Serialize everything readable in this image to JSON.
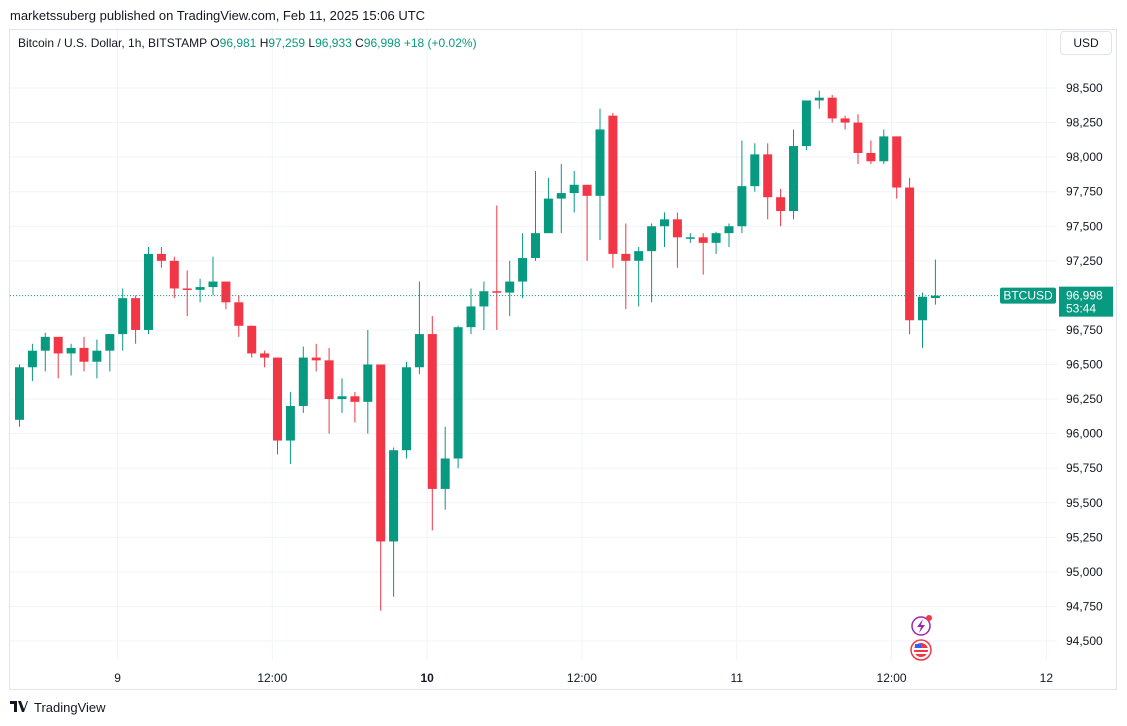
{
  "header": {
    "publisher": "marketssuberg published on TradingView.com, Feb 11, 2025 15:06 UTC"
  },
  "legend": {
    "symbol": "Bitcoin / U.S. Dollar, 1h, BITSTAMP",
    "o_label": "O",
    "o": "96,981",
    "h_label": "H",
    "h": "97,259",
    "l_label": "L",
    "l": "96,933",
    "c_label": "C",
    "c": "96,998",
    "change": "+18 (+0.02%)"
  },
  "currency_button": "USD",
  "price_badge": {
    "symbol": "BTCUSD",
    "price": "96,998",
    "countdown": "53:44"
  },
  "footer": {
    "brand": "TradingView"
  },
  "colors": {
    "up": "#089981",
    "down": "#f23645",
    "grid": "#f0f3fa",
    "text": "#131722"
  },
  "chart_data": {
    "type": "candlestick",
    "y_ticks": [
      "98,500",
      "98,250",
      "98,000",
      "97,750",
      "97,500",
      "97,250",
      "96,750",
      "96,500",
      "96,250",
      "96,000",
      "95,750",
      "95,500",
      "95,250",
      "95,000",
      "94,750",
      "94,500"
    ],
    "y_tick_values": [
      98500,
      98250,
      98000,
      97750,
      97500,
      97250,
      96750,
      96500,
      96250,
      96000,
      95750,
      95500,
      95250,
      95000,
      94750,
      94500
    ],
    "x_ticks": [
      {
        "label": "9",
        "bold": false,
        "index": 7.6
      },
      {
        "label": "12:00",
        "bold": false,
        "index": 19.6
      },
      {
        "label": "10",
        "bold": true,
        "index": 31.6
      },
      {
        "label": "12:00",
        "bold": false,
        "index": 43.6
      },
      {
        "label": "11",
        "bold": false,
        "index": 55.6
      },
      {
        "label": "12:00",
        "bold": false,
        "index": 67.6
      },
      {
        "label": "12",
        "bold": false,
        "index": 79.6
      }
    ],
    "ylim": [
      94400,
      98750
    ],
    "last_price": 96998,
    "candles": [
      [
        96100,
        96500,
        96050,
        96480
      ],
      [
        96480,
        96650,
        96380,
        96600
      ],
      [
        96600,
        96730,
        96450,
        96700
      ],
      [
        96700,
        96680,
        96400,
        96580
      ],
      [
        96580,
        96650,
        96420,
        96620
      ],
      [
        96620,
        96700,
        96450,
        96520
      ],
      [
        96520,
        96680,
        96400,
        96600
      ],
      [
        96600,
        96720,
        96450,
        96720
      ],
      [
        96720,
        97050,
        96600,
        96980
      ],
      [
        96980,
        97000,
        96650,
        96750
      ],
      [
        96750,
        97350,
        96720,
        97300
      ],
      [
        97300,
        97350,
        97200,
        97250
      ],
      [
        97250,
        97280,
        96980,
        97050
      ],
      [
        97050,
        97180,
        96850,
        97040
      ],
      [
        97040,
        97120,
        96950,
        97060
      ],
      [
        97060,
        97280,
        97000,
        97100
      ],
      [
        97100,
        97080,
        96900,
        96950
      ],
      [
        96950,
        97000,
        96700,
        96780
      ],
      [
        96780,
        96780,
        96550,
        96580
      ],
      [
        96580,
        96600,
        96480,
        96550
      ],
      [
        96550,
        96550,
        95850,
        95950
      ],
      [
        95950,
        96300,
        95780,
        96200
      ],
      [
        96200,
        96630,
        96150,
        96550
      ],
      [
        96550,
        96650,
        96450,
        96530
      ],
      [
        96530,
        96620,
        96000,
        96250
      ],
      [
        96250,
        96400,
        96150,
        96270
      ],
      [
        96270,
        96300,
        96080,
        96230
      ],
      [
        96230,
        96750,
        96000,
        96500
      ],
      [
        96500,
        96500,
        94720,
        95220
      ],
      [
        95220,
        95900,
        94820,
        95880
      ],
      [
        95880,
        96520,
        95820,
        96480
      ],
      [
        96480,
        97100,
        96430,
        96720
      ],
      [
        96720,
        96850,
        95300,
        95600
      ],
      [
        95600,
        96050,
        95450,
        95820
      ],
      [
        95820,
        96780,
        95750,
        96770
      ],
      [
        96770,
        97050,
        96720,
        96920
      ],
      [
        96920,
        97100,
        96750,
        97030
      ],
      [
        97030,
        97650,
        96750,
        97020
      ],
      [
        97020,
        97250,
        96850,
        97100
      ],
      [
        97100,
        97450,
        96980,
        97270
      ],
      [
        97270,
        97900,
        97250,
        97450
      ],
      [
        97450,
        97850,
        97450,
        97700
      ],
      [
        97700,
        97950,
        97450,
        97740
      ],
      [
        97740,
        97900,
        97600,
        97800
      ],
      [
        97800,
        97780,
        97250,
        97720
      ],
      [
        97720,
        98350,
        97400,
        98200
      ],
      [
        98300,
        98320,
        97200,
        97300
      ],
      [
        97300,
        97520,
        96900,
        97250
      ],
      [
        97250,
        97350,
        96920,
        97320
      ],
      [
        97320,
        97520,
        96950,
        97500
      ],
      [
        97500,
        97600,
        97350,
        97550
      ],
      [
        97550,
        97600,
        97200,
        97420
      ],
      [
        97420,
        97450,
        97380,
        97420
      ],
      [
        97420,
        97450,
        97150,
        97380
      ],
      [
        97380,
        97460,
        97300,
        97450
      ],
      [
        97450,
        97520,
        97350,
        97500
      ],
      [
        97500,
        98120,
        97450,
        97790
      ],
      [
        97790,
        98100,
        97750,
        98020
      ],
      [
        98020,
        98100,
        97550,
        97710
      ],
      [
        97710,
        97770,
        97500,
        97610
      ],
      [
        97610,
        98200,
        97550,
        98080
      ],
      [
        98080,
        98400,
        98050,
        98410
      ],
      [
        98410,
        98480,
        98350,
        98430
      ],
      [
        98430,
        98450,
        98250,
        98280
      ],
      [
        98280,
        98300,
        98200,
        98250
      ],
      [
        98250,
        98310,
        97950,
        98030
      ],
      [
        98030,
        98120,
        97950,
        97970
      ],
      [
        97970,
        98200,
        97950,
        98150
      ],
      [
        98150,
        98150,
        97700,
        97780
      ],
      [
        97780,
        97850,
        96720,
        96820
      ],
      [
        96820,
        97020,
        96620,
        96990
      ],
      [
        96981,
        97259,
        96933,
        96998
      ]
    ]
  }
}
